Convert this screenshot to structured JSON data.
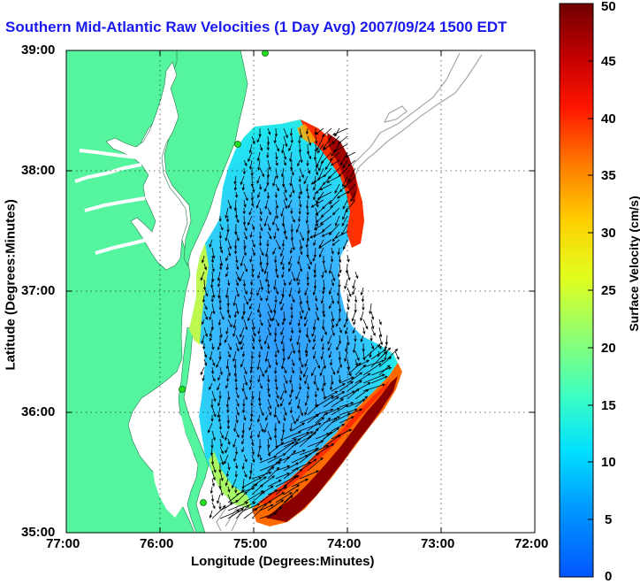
{
  "title": "Southern Mid-Atlantic Raw Velocities (1 Day Avg) 2007/09/24 1500 EDT",
  "axes": {
    "xlabel": "Longitude (Degrees:Minutes)",
    "ylabel": "Latitude (Degrees:Minutes)",
    "xticks": [
      "77:00",
      "76:00",
      "75:00",
      "74:00",
      "73:00",
      "72:00"
    ],
    "yticks": [
      "39:00",
      "38:00",
      "37:00",
      "36:00",
      "35:00"
    ],
    "xlim": [
      -77,
      -72
    ],
    "ylim": [
      35,
      39
    ],
    "grid": "dotted"
  },
  "colorbar": {
    "label": "Surface Velocity (cm/s)",
    "ticks": [
      "50",
      "45",
      "40",
      "35",
      "30",
      "25",
      "20",
      "15",
      "10",
      "5",
      "0"
    ],
    "range": [
      0,
      50
    ],
    "colormap": "jet"
  },
  "colors": {
    "land": "#55f5a0",
    "water": "#ffffff",
    "bathymetry": "#a8a8a8",
    "arrows": "#000000",
    "title": "#1a1aee",
    "stations": "#22dd22"
  }
}
